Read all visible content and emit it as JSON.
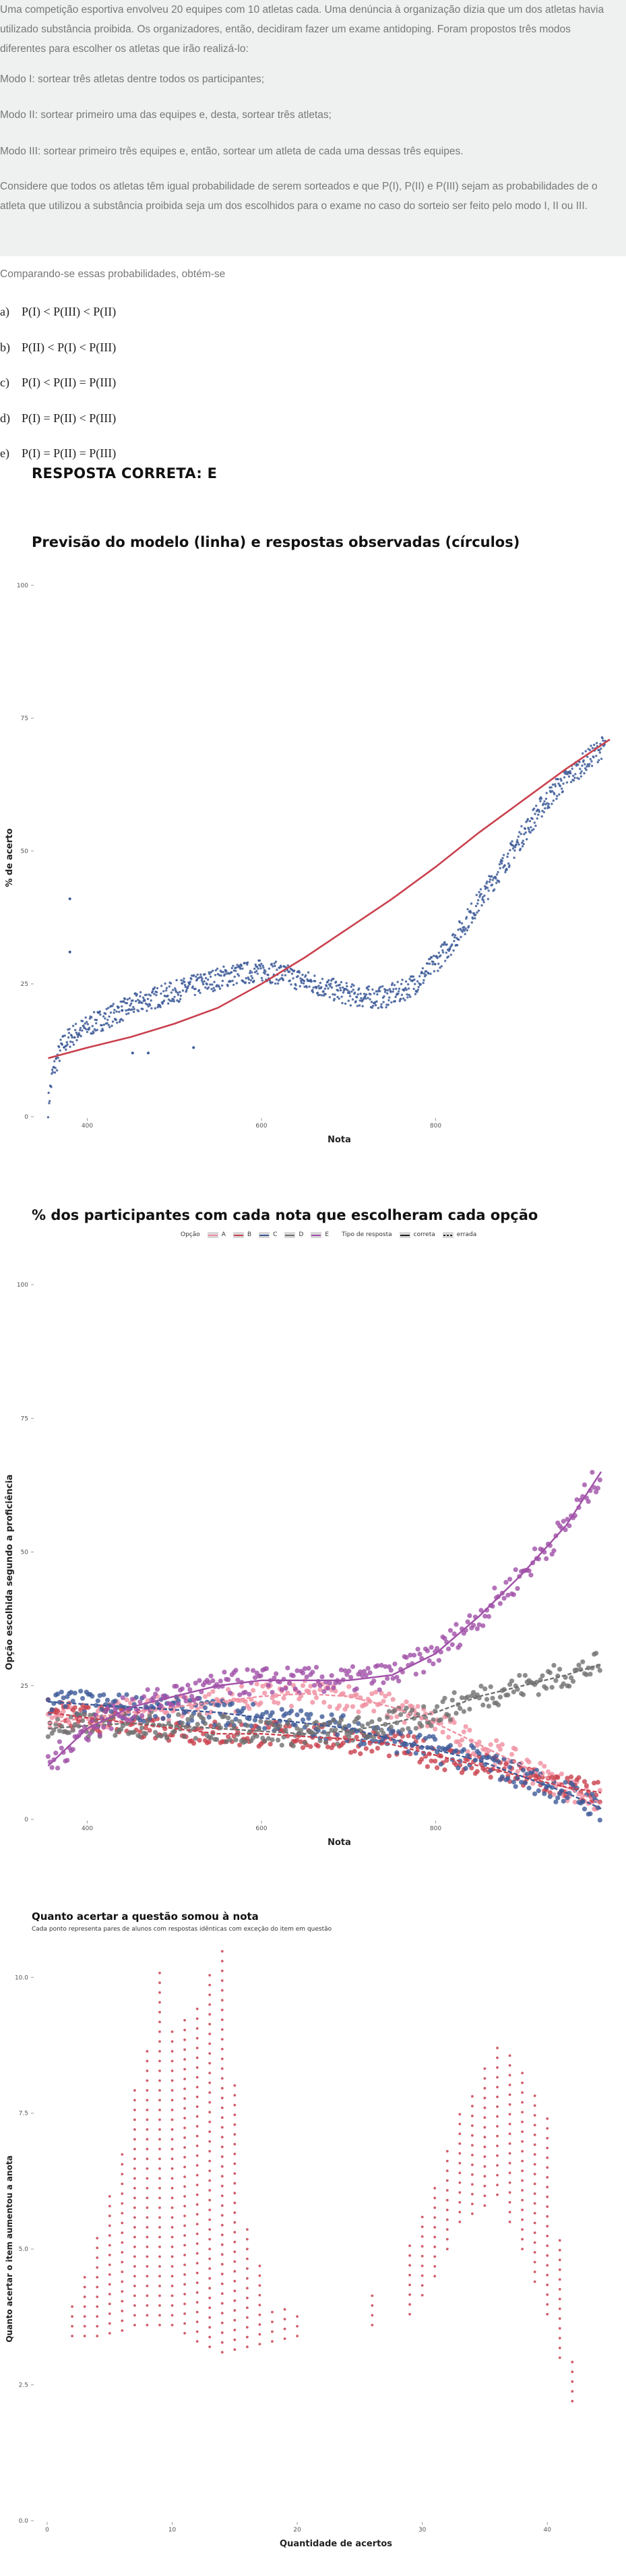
{
  "question": {
    "paragraphs": [
      "Uma competição esportiva envolveu 20 equipes com 10 atletas cada. Uma denúncia à organização dizia que um dos atletas havia utilizado substância proibida. Os organizadores, então, decidiram fazer um exame antidoping. Foram propostos três modos diferentes para escolher os atletas que irão realizá-lo:",
      "Modo I: sortear três atletas dentre todos os participantes;",
      "Modo II: sortear primeiro uma das equipes e, desta, sortear três atletas;",
      "Modo III: sortear primeiro três equipes e, então, sortear um atleta de cada uma dessas três equipes.",
      "Considere que todos os atletas têm igual probabilidade de serem sorteados e que P(I), P(II) e P(III) sejam as probabilidades de o atleta que utilizou a substância proibida seja um dos escolhidos para o exame no caso do sorteio ser feito pelo modo I, II ou III."
    ],
    "comparison": "Comparando-se essas probabilidades, obtém-se",
    "options": [
      {
        "letter": "a)",
        "text": "P(I) < P(III) < P(II)"
      },
      {
        "letter": "b)",
        "text": "P(II) < P(I) < P(III)"
      },
      {
        "letter": "c)",
        "text": "P(I) < P(II) = P(III)"
      },
      {
        "letter": "d)",
        "text": "P(I) = P(II) < P(III)"
      },
      {
        "letter": "e)",
        "text": "P(I) = P(II) = P(III)"
      }
    ],
    "answer": "RESPOSTA CORRETA: E"
  },
  "chart_data": [
    {
      "type": "scatter",
      "title": "Previsão do modelo (linha) e respostas observadas (círculos)",
      "xlabel": "Nota",
      "ylabel": "% de acerto",
      "x_ticks": [
        "400",
        "600",
        "800"
      ],
      "y_ticks": [
        "0",
        "25",
        "50",
        "75",
        "100"
      ],
      "xlim": [
        340,
        1000
      ],
      "ylim": [
        0,
        100
      ],
      "grid": false,
      "series": [
        {
          "role": "model prediction",
          "mark": "line",
          "color": "#c9414e",
          "x": [
            355,
            400,
            450,
            500,
            550,
            600,
            650,
            700,
            750,
            800,
            850,
            900,
            950,
            1000
          ],
          "y": [
            11,
            13,
            15,
            17.5,
            20.5,
            25,
            30,
            35.5,
            41,
            47,
            53.5,
            59.5,
            65.5,
            71
          ]
        },
        {
          "role": "observed",
          "mark": "points",
          "color": "#3d5a98",
          "x": [
            355,
            360,
            370,
            380,
            400,
            420,
            440,
            460,
            480,
            500,
            520,
            540,
            560,
            580,
            600,
            620,
            640,
            660,
            680,
            700,
            720,
            740,
            760,
            780,
            800,
            820,
            840,
            860,
            880,
            900,
            920,
            940,
            960,
            980,
            995
          ],
          "y": [
            2,
            8,
            13,
            15,
            17,
            18.5,
            20,
            21.5,
            22.5,
            23.5,
            24.5,
            25.5,
            26.5,
            27,
            27.5,
            27,
            26,
            25,
            24,
            23,
            22.5,
            22.5,
            23.5,
            25.5,
            29,
            33,
            38,
            43,
            48,
            53,
            58,
            62,
            65,
            68,
            70
          ]
        },
        {
          "role": "observed outliers",
          "mark": "points",
          "color": "#3d5a98",
          "x": [
            380,
            380,
            440,
            452,
            470,
            522
          ],
          "y": [
            41,
            31,
            20,
            12,
            12,
            13
          ]
        }
      ]
    },
    {
      "type": "scatter",
      "title": "% dos participantes com cada nota que escolheram cada opção",
      "xlabel": "Nota",
      "ylabel": "Opção escolhida segundo a proficiência",
      "x_ticks": [
        "400",
        "600",
        "800"
      ],
      "y_ticks": [
        "0",
        "25",
        "50",
        "75",
        "100"
      ],
      "xlim": [
        340,
        1000
      ],
      "ylim": [
        0,
        100
      ],
      "grid": false,
      "legend": {
        "position": "top",
        "option_title": "Opção",
        "options": [
          {
            "label": "A",
            "color": "#f08fa0"
          },
          {
            "label": "B",
            "color": "#c9414e"
          },
          {
            "label": "C",
            "color": "#3d5a98"
          },
          {
            "label": "D",
            "color": "#717070"
          },
          {
            "label": "E",
            "color": "#a050a8"
          }
        ],
        "type_title": "Tipo de resposta",
        "types": [
          "correta",
          "errada"
        ]
      },
      "series": [
        {
          "name": "A",
          "color": "#f08fa0",
          "x": [
            355,
            400,
            450,
            500,
            550,
            600,
            650,
            700,
            750,
            800,
            850,
            900,
            950,
            990
          ],
          "y": [
            18,
            19,
            20,
            21,
            22,
            23,
            23.5,
            23,
            21,
            18,
            14,
            10,
            6,
            3
          ]
        },
        {
          "name": "B",
          "color": "#c9414e",
          "x": [
            355,
            400,
            450,
            500,
            550,
            600,
            650,
            700,
            750,
            800,
            850,
            900,
            950,
            990
          ],
          "y": [
            20,
            19,
            18,
            17,
            16,
            16,
            15.5,
            15,
            14,
            12,
            10,
            8,
            6,
            5
          ]
        },
        {
          "name": "C",
          "color": "#3d5a98",
          "x": [
            355,
            400,
            450,
            500,
            550,
            600,
            650,
            700,
            750,
            800,
            850,
            900,
            950,
            990
          ],
          "y": [
            22,
            21.5,
            21,
            20.5,
            20,
            19,
            18,
            17,
            15,
            13,
            11,
            8,
            5,
            2
          ]
        },
        {
          "name": "D",
          "color": "#717070",
          "x": [
            355,
            400,
            450,
            500,
            550,
            600,
            650,
            700,
            750,
            800,
            850,
            900,
            950,
            990
          ],
          "y": [
            17,
            17.5,
            18,
            17.5,
            17,
            16.5,
            16,
            16.5,
            18,
            20,
            23,
            25,
            27,
            29
          ]
        },
        {
          "name": "E",
          "color": "#a050a8",
          "correct": true,
          "x": [
            355,
            400,
            450,
            500,
            550,
            600,
            650,
            700,
            750,
            800,
            850,
            900,
            950,
            990
          ],
          "y": [
            10,
            17,
            21,
            23,
            25,
            26,
            26,
            26,
            27,
            31,
            38,
            46,
            55,
            65
          ]
        }
      ]
    },
    {
      "type": "scatter",
      "title": "Quanto acertar a questão somou à nota",
      "subtitle": "Cada ponto representa pares de alunos com respostas idênticas com exceção do item em questão",
      "xlabel": "Quantidade de acertos",
      "ylabel": "Quanto acertar o item aumentou a anota",
      "x_ticks": [
        "0",
        "10",
        "20",
        "30",
        "40"
      ],
      "y_ticks": [
        "0.0",
        "2.5",
        "5.0",
        "7.5",
        "10.0"
      ],
      "xlim": [
        0,
        45
      ],
      "ylim": [
        0,
        10.5
      ],
      "grid": false,
      "color": "#c9414e",
      "points_summary": [
        {
          "x": 2,
          "y_min": 3.4,
          "y_max": 4.0
        },
        {
          "x": 4,
          "y_min": 3.4,
          "y_max": 5.2
        },
        {
          "x": 6,
          "y_min": 3.5,
          "y_max": 6.9
        },
        {
          "x": 7,
          "y_min": 3.6,
          "y_max": 8.0
        },
        {
          "x": 8,
          "y_min": 3.6,
          "y_max": 8.8
        },
        {
          "x": 9,
          "y_min": 3.6,
          "y_max": 10.2
        },
        {
          "x": 10,
          "y_min": 3.6,
          "y_max": 9.0
        },
        {
          "x": 12,
          "y_min": 3.3,
          "y_max": 9.5
        },
        {
          "x": 14,
          "y_min": 3.1,
          "y_max": 10.6
        },
        {
          "x": 16,
          "y_min": 3.2,
          "y_max": 5.5
        },
        {
          "x": 18,
          "y_min": 3.3,
          "y_max": 4.0
        },
        {
          "x": 20,
          "y_min": 3.4,
          "y_max": 3.8
        },
        {
          "x": 26,
          "y_min": 3.6,
          "y_max": 4.2
        },
        {
          "x": 29,
          "y_min": 3.8,
          "y_max": 5.2
        },
        {
          "x": 31,
          "y_min": 4.5,
          "y_max": 6.2
        },
        {
          "x": 33,
          "y_min": 5.5,
          "y_max": 7.5
        },
        {
          "x": 35,
          "y_min": 5.8,
          "y_max": 8.4
        },
        {
          "x": 36,
          "y_min": 6.0,
          "y_max": 8.8
        },
        {
          "x": 38,
          "y_min": 5.0,
          "y_max": 8.4
        },
        {
          "x": 40,
          "y_min": 3.8,
          "y_max": 7.4
        },
        {
          "x": 42,
          "y_min": 2.2,
          "y_max": 3.0
        }
      ]
    }
  ]
}
